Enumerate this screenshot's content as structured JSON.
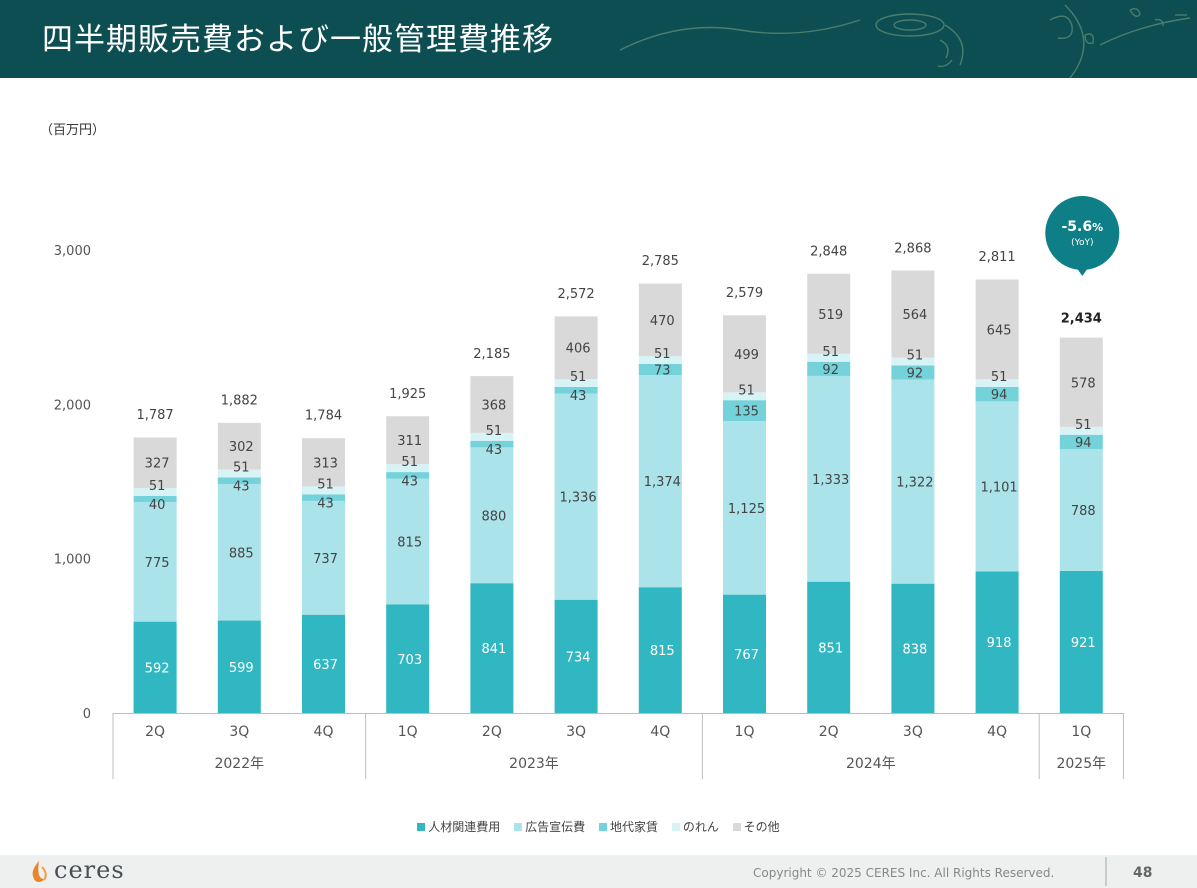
{
  "header": {
    "title": "四半期販売費および一般管理費推移"
  },
  "unit_label": "（百万円）",
  "chart_data": {
    "type": "stacked-bar",
    "categories": [
      "2Q",
      "3Q",
      "4Q",
      "1Q",
      "2Q",
      "3Q",
      "4Q",
      "1Q",
      "2Q",
      "3Q",
      "4Q",
      "1Q"
    ],
    "year_groups": [
      {
        "label": "2022年",
        "span": 3
      },
      {
        "label": "2023年",
        "span": 4
      },
      {
        "label": "2024年",
        "span": 4
      },
      {
        "label": "2025年",
        "span": 1
      }
    ],
    "series": [
      {
        "name": "人材関連費用",
        "color": "#31b7c2",
        "values": [
          592,
          599,
          637,
          703,
          841,
          734,
          815,
          767,
          851,
          838,
          918,
          921
        ]
      },
      {
        "name": "広告宣伝費",
        "color": "#abe3ea",
        "values": [
          775,
          885,
          737,
          815,
          880,
          1336,
          1374,
          1125,
          1333,
          1322,
          1101,
          788
        ]
      },
      {
        "name": "地代家賃",
        "color": "#74d3da",
        "values": [
          40,
          43,
          43,
          43,
          43,
          43,
          73,
          135,
          92,
          92,
          94,
          94
        ]
      },
      {
        "name": "のれん",
        "color": "#d7f3f5",
        "values": [
          51,
          51,
          51,
          51,
          51,
          51,
          51,
          51,
          51,
          51,
          51,
          51
        ]
      },
      {
        "name": "その他",
        "color": "#d9d9d9",
        "values": [
          327,
          302,
          313,
          311,
          368,
          406,
          470,
          499,
          519,
          564,
          645,
          578
        ]
      }
    ],
    "value_labels": [
      [
        "592",
        "599",
        "637",
        "703",
        "841",
        "734",
        "815",
        "767",
        "851",
        "838",
        "918",
        "921"
      ],
      [
        "775",
        "885",
        "737",
        "815",
        "880",
        "1,336",
        "1,374",
        "1,125",
        "1,333",
        "1,322",
        "1,101",
        "788"
      ],
      [
        "40",
        "43",
        "43",
        "43",
        "43",
        "43",
        "73",
        "135",
        "92",
        "92",
        "94",
        "94"
      ],
      [
        "51",
        "51",
        "51",
        "51",
        "51",
        "51",
        "51",
        "51",
        "51",
        "51",
        "51",
        "51"
      ],
      [
        "327",
        "302",
        "313",
        "311",
        "368",
        "406",
        "470",
        "499",
        "519",
        "564",
        "645",
        "578"
      ]
    ],
    "totals": [
      1787,
      1882,
      1784,
      1925,
      2185,
      2572,
      2785,
      2579,
      2848,
      2868,
      2811,
      2434
    ],
    "total_labels": [
      "1,787",
      "1,882",
      "1,784",
      "1,925",
      "2,185",
      "2,572",
      "2,785",
      "2,579",
      "2,848",
      "2,868",
      "2,811",
      "2,434"
    ],
    "y_ticks": [
      0,
      1000,
      2000,
      3000
    ],
    "y_tick_labels": [
      "0",
      "1,000",
      "2,000",
      "3,000"
    ],
    "ylim": [
      0,
      3000
    ],
    "callout": {
      "value": "-5.6",
      "unit": "%",
      "sub": "(YoY)",
      "target_index": 11
    }
  },
  "footer": {
    "logo_text": "ceres",
    "copyright": "Copyright © 2025 CERES Inc. All Rights Reserved.",
    "page_number": "48"
  },
  "colors": {
    "header_bg": "#0d4e52",
    "callout": "#0e7f86"
  }
}
